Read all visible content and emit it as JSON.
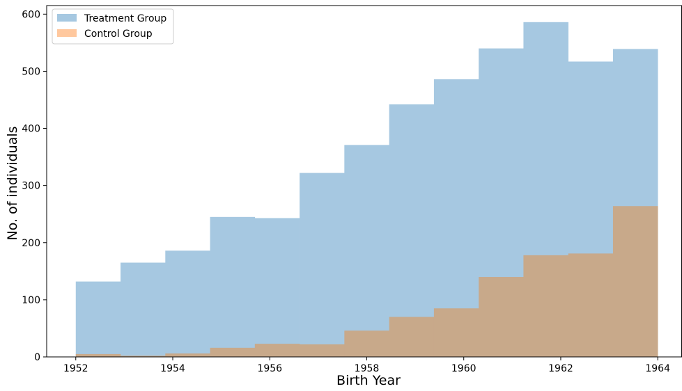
{
  "chart_data": {
    "type": "bar",
    "subtype": "overlapping histogram",
    "title": "",
    "xlabel": "Birth Year",
    "ylabel": "No. of individuals",
    "xlim": [
      1951.4,
      1964.5
    ],
    "ylim": [
      0,
      615
    ],
    "xticks": [
      1952,
      1954,
      1956,
      1958,
      1960,
      1962,
      1964
    ],
    "yticks": [
      0,
      100,
      200,
      300,
      400,
      500,
      600
    ],
    "bin_edges": [
      1952,
      1952.923,
      1953.846,
      1954.769,
      1955.692,
      1956.615,
      1957.538,
      1958.462,
      1959.385,
      1960.308,
      1961.231,
      1962.154,
      1963.077,
      1964
    ],
    "grid": false,
    "legend_position": "top-left",
    "series": [
      {
        "name": "Treatment Group",
        "color": "#a6c8e1",
        "values": [
          132,
          165,
          186,
          245,
          243,
          322,
          371,
          442,
          486,
          540,
          586,
          517,
          539
        ]
      },
      {
        "name": "Control Group",
        "color": "#ffc89e",
        "overlap_color": "#c8a98a",
        "values": [
          5,
          2,
          6,
          16,
          23,
          22,
          46,
          70,
          85,
          140,
          178,
          181,
          264
        ]
      }
    ]
  }
}
